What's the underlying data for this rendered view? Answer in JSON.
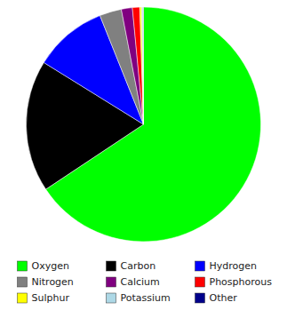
{
  "chart_data": {
    "type": "pie",
    "categories": [
      "Oxygen",
      "Carbon",
      "Hydrogen",
      "Nitrogen",
      "Calcium",
      "Phosphorous",
      "Sulphur",
      "Potassium",
      "Other"
    ],
    "values": [
      65.0,
      18.0,
      10.0,
      3.0,
      1.5,
      1.0,
      0.25,
      0.2,
      0.05
    ],
    "colors": [
      "#00ff00",
      "#000000",
      "#0000ff",
      "#808080",
      "#800080",
      "#ff0000",
      "#ffff00",
      "#add8e6",
      "#00008b"
    ],
    "legend": "bottom"
  }
}
